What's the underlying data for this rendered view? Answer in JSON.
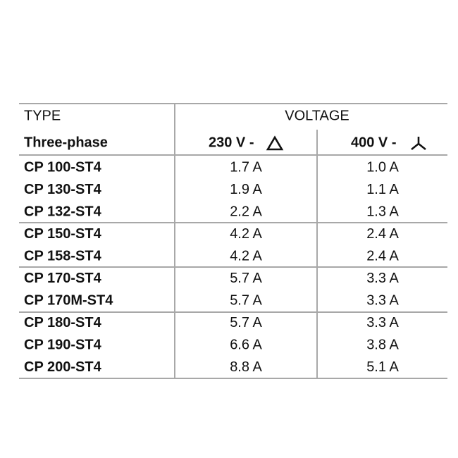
{
  "table": {
    "header": [
      "TYPE",
      "VOLTAGE"
    ],
    "subheader": [
      "Three-phase",
      "230 V -",
      "400 V -"
    ],
    "rows": [
      [
        "CP 100-ST4",
        "1.7 A",
        "1.0 A"
      ],
      [
        "CP 130-ST4",
        "1.9 A",
        "1.1 A"
      ],
      [
        "CP 132-ST4",
        "2.2 A",
        "1.3 A"
      ],
      [
        "CP 150-ST4",
        "4.2 A",
        "2.4 A"
      ],
      [
        "CP 158-ST4",
        "4.2 A",
        "2.4 A"
      ],
      [
        "CP 170-ST4",
        "5.7 A",
        "3.3 A"
      ],
      [
        "CP 170M-ST4",
        "5.7 A",
        "3.3 A"
      ],
      [
        "CP 180-ST4",
        "5.7 A",
        "3.3 A"
      ],
      [
        "CP 190-ST4",
        "6.6 A",
        "3.8 A"
      ],
      [
        "CP 200-ST4",
        "8.8 A",
        "5.1 A"
      ]
    ]
  }
}
